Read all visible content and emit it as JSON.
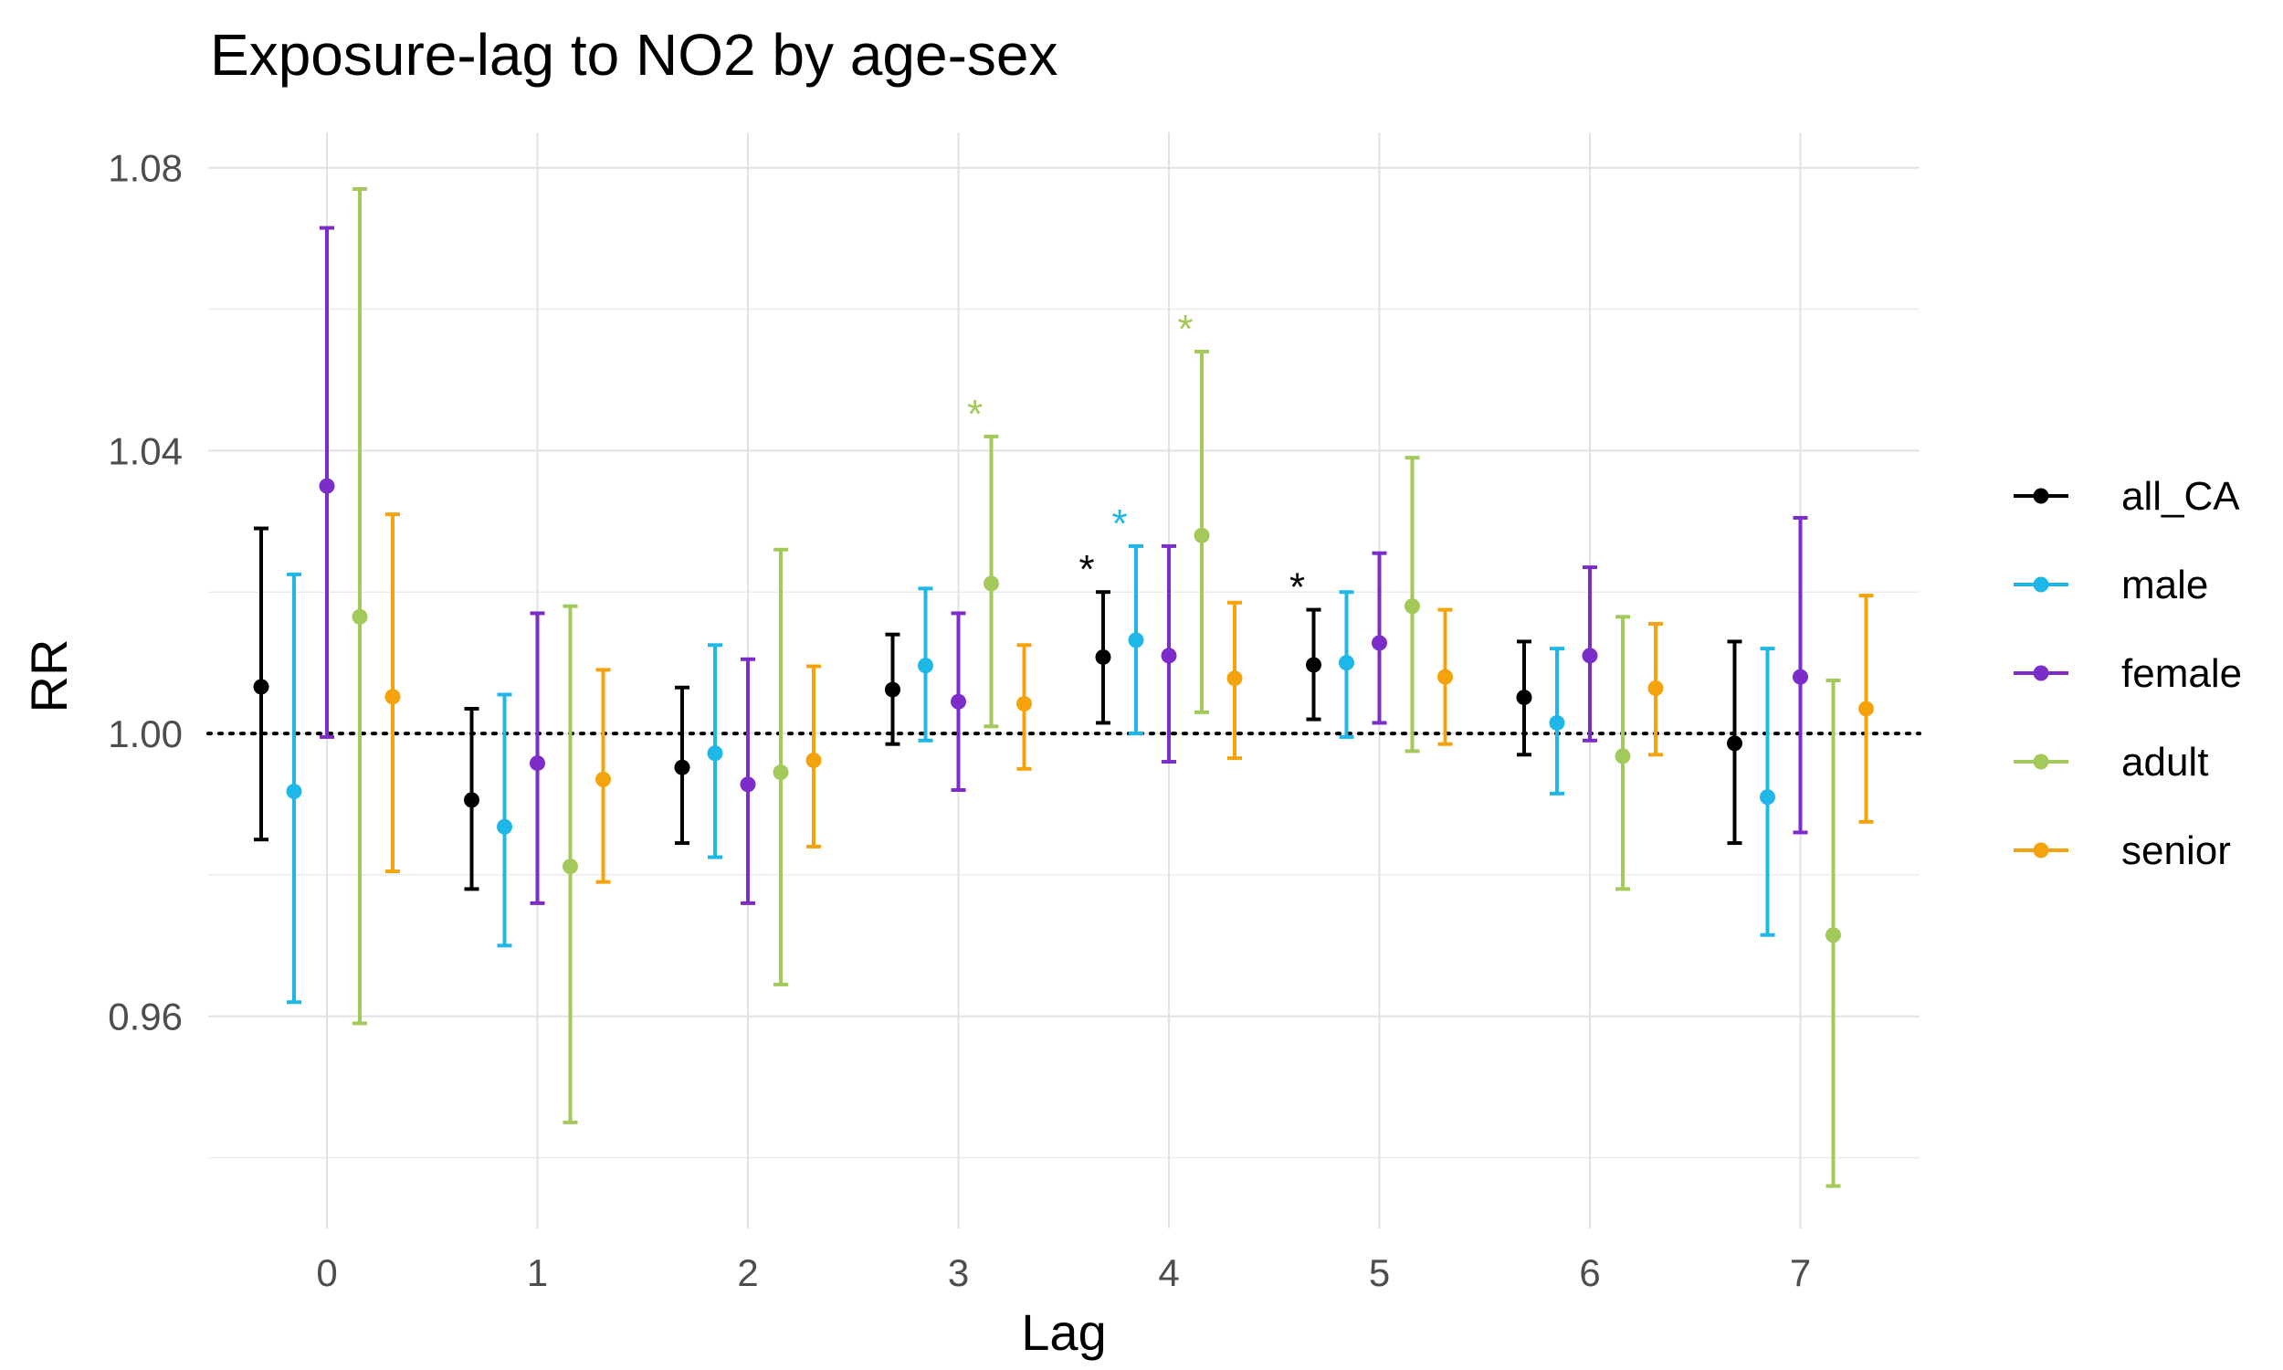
{
  "chart_data": {
    "type": "errorbar",
    "title": "Exposure-lag to NO2 by age-sex",
    "xlabel": "Lag",
    "ylabel": "RR",
    "categories": [
      "0",
      "1",
      "2",
      "3",
      "4",
      "5",
      "6",
      "7"
    ],
    "ylim": [
      0.93,
      1.085
    ],
    "yticks": [
      0.96,
      1.0,
      1.04,
      1.08
    ],
    "ytick_labels": [
      "0.96",
      "1.00",
      "1.04",
      "1.08"
    ],
    "reference_line": 1.0,
    "grid": true,
    "legend_position": "right",
    "series": [
      {
        "name": "all_CA",
        "color": "#000000",
        "estimate": [
          1.0066,
          0.9906,
          0.9952,
          1.0062,
          1.0108,
          1.0097,
          1.0051,
          0.9986
        ],
        "lower": [
          0.985,
          0.978,
          0.9845,
          0.9985,
          1.0015,
          1.002,
          0.997,
          0.9845
        ],
        "upper": [
          1.029,
          1.0035,
          1.0065,
          1.014,
          1.02,
          1.0175,
          1.013,
          1.013
        ],
        "significant": [
          false,
          false,
          false,
          false,
          true,
          true,
          false,
          false
        ]
      },
      {
        "name": "male",
        "color": "#1fb6e8",
        "estimate": [
          0.9918,
          0.9868,
          0.9972,
          1.0096,
          1.0132,
          1.01,
          1.0015,
          0.991
        ],
        "lower": [
          0.962,
          0.97,
          0.9825,
          0.999,
          1.0,
          0.9995,
          0.9915,
          0.9715
        ],
        "upper": [
          1.0225,
          1.0055,
          1.0125,
          1.0205,
          1.0265,
          1.02,
          1.012,
          1.012
        ],
        "significant": [
          false,
          false,
          false,
          false,
          true,
          false,
          false,
          false
        ]
      },
      {
        "name": "female",
        "color": "#7b2cc9",
        "estimate": [
          1.035,
          0.9958,
          0.9928,
          1.0045,
          1.011,
          1.0128,
          1.011,
          1.008
        ],
        "lower": [
          0.9995,
          0.976,
          0.976,
          0.992,
          0.996,
          1.0015,
          0.999,
          0.986
        ],
        "upper": [
          1.0715,
          1.017,
          1.0105,
          1.017,
          1.0265,
          1.0255,
          1.0235,
          1.0305
        ],
        "significant": [
          false,
          false,
          false,
          false,
          false,
          false,
          false,
          false
        ]
      },
      {
        "name": "adult",
        "color": "#a3c95a",
        "estimate": [
          1.0165,
          0.9812,
          0.9945,
          1.0212,
          1.028,
          1.018,
          0.9968,
          0.9715
        ],
        "lower": [
          0.959,
          0.945,
          0.9645,
          1.001,
          1.003,
          0.9975,
          0.978,
          0.936
        ],
        "upper": [
          1.077,
          1.018,
          1.026,
          1.042,
          1.054,
          1.039,
          1.0165,
          1.0075
        ],
        "significant": [
          false,
          false,
          false,
          true,
          true,
          false,
          false,
          false
        ]
      },
      {
        "name": "senior",
        "color": "#f5a30c",
        "estimate": [
          1.0052,
          0.9935,
          0.9962,
          1.0042,
          1.0078,
          1.008,
          1.0064,
          1.0035
        ],
        "lower": [
          0.9805,
          0.979,
          0.984,
          0.995,
          0.9965,
          0.9985,
          0.997,
          0.9875
        ],
        "upper": [
          1.031,
          1.009,
          1.0095,
          1.0125,
          1.0185,
          1.0175,
          1.0155,
          1.0195
        ],
        "significant": [
          false,
          false,
          false,
          false,
          false,
          false,
          false,
          false
        ]
      }
    ],
    "significance_marker": "*"
  }
}
